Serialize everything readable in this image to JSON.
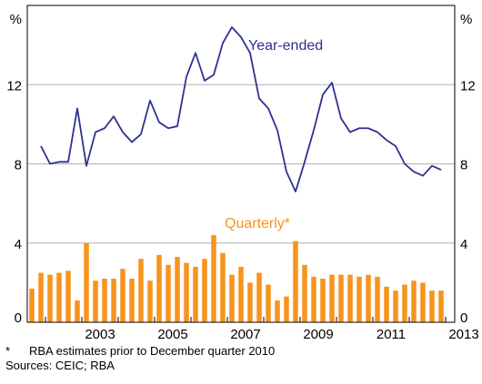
{
  "chart_data": {
    "type": "bar+line",
    "y_unit_left": "%",
    "y_unit_right": "%",
    "ylim": [
      0,
      16
    ],
    "yticks": [
      0,
      4,
      8,
      12
    ],
    "year_labels": [
      "2003",
      "2005",
      "2007",
      "2009",
      "2011",
      "2013"
    ],
    "series": [
      {
        "name": "Year-ended",
        "kind": "line",
        "color": "#2e3192",
        "x": [
          "2001-12",
          "2002-03",
          "2002-06",
          "2002-09",
          "2002-12",
          "2003-03",
          "2003-06",
          "2003-09",
          "2003-12",
          "2004-03",
          "2004-06",
          "2004-09",
          "2004-12",
          "2005-03",
          "2005-06",
          "2005-09",
          "2005-12",
          "2006-03",
          "2006-06",
          "2006-09",
          "2006-12",
          "2007-03",
          "2007-06",
          "2007-09",
          "2007-12",
          "2008-03",
          "2008-06",
          "2008-09",
          "2008-12",
          "2009-03",
          "2009-06",
          "2009-09",
          "2009-12",
          "2010-03",
          "2010-06",
          "2010-09",
          "2010-12",
          "2011-03",
          "2011-06",
          "2011-09",
          "2011-12",
          "2012-03",
          "2012-06",
          "2012-09",
          "2012-12"
        ],
        "values": [
          8.9,
          8.0,
          8.1,
          8.1,
          10.8,
          7.9,
          9.6,
          9.8,
          10.4,
          9.6,
          9.1,
          9.5,
          11.2,
          10.1,
          9.8,
          9.9,
          12.4,
          13.6,
          12.2,
          12.5,
          14.1,
          14.9,
          14.4,
          13.6,
          11.3,
          10.8,
          9.7,
          7.6,
          6.6,
          8.1,
          9.7,
          11.5,
          12.1,
          10.3,
          9.6,
          9.8,
          9.8,
          9.6,
          9.2,
          8.9,
          8.0,
          7.6,
          7.4,
          7.9,
          7.7
        ]
      },
      {
        "name": "Quarterly*",
        "kind": "bar",
        "color": "#f7941d",
        "x": [
          "2001-09",
          "2001-12",
          "2002-03",
          "2002-06",
          "2002-09",
          "2002-12",
          "2003-03",
          "2003-06",
          "2003-09",
          "2003-12",
          "2004-03",
          "2004-06",
          "2004-09",
          "2004-12",
          "2005-03",
          "2005-06",
          "2005-09",
          "2005-12",
          "2006-03",
          "2006-06",
          "2006-09",
          "2006-12",
          "2007-03",
          "2007-06",
          "2007-09",
          "2007-12",
          "2008-03",
          "2008-06",
          "2008-09",
          "2008-12",
          "2009-03",
          "2009-06",
          "2009-09",
          "2009-12",
          "2010-03",
          "2010-06",
          "2010-09",
          "2010-12",
          "2011-03",
          "2011-06",
          "2011-09",
          "2011-12",
          "2012-03",
          "2012-06",
          "2012-09",
          "2012-12"
        ],
        "values": [
          1.7,
          2.5,
          2.4,
          2.5,
          2.6,
          1.1,
          4.0,
          2.1,
          2.2,
          2.2,
          2.7,
          2.2,
          3.2,
          2.1,
          3.4,
          2.9,
          3.3,
          3.0,
          2.8,
          3.2,
          4.4,
          3.5,
          2.4,
          2.8,
          2.0,
          2.5,
          1.9,
          1.1,
          1.3,
          4.1,
          2.9,
          2.3,
          2.2,
          2.4,
          2.4,
          2.4,
          2.3,
          2.4,
          2.3,
          1.8,
          1.6,
          1.9,
          2.1,
          2.0,
          1.6,
          1.6
        ]
      }
    ],
    "labels": {
      "line": "Year-ended",
      "bar": "Quarterly*"
    }
  },
  "footnotes": {
    "star": "*",
    "note": "RBA estimates prior to December quarter 2010",
    "sources": "Sources: CEIC; RBA"
  }
}
